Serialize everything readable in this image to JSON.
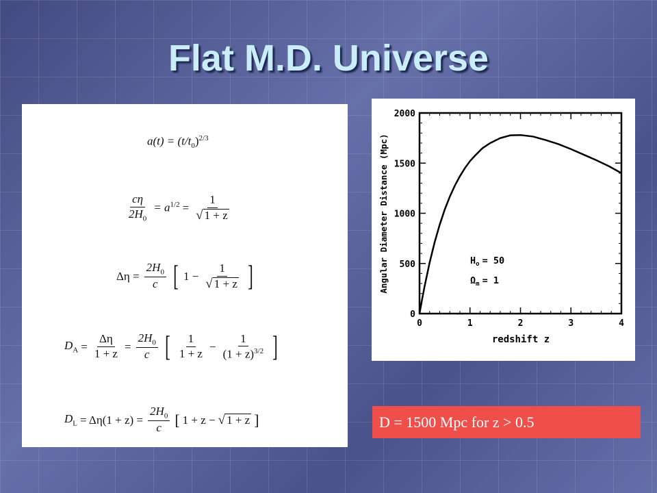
{
  "slide": {
    "title": "Flat M.D. Universe",
    "note": "D = 1500 Mpc for z > 0.5"
  },
  "equations": {
    "eq1": {
      "lhs": "a(t) = (t/t",
      "sub": "0",
      "close": ")",
      "exp": "2/3"
    },
    "eq2": {
      "num": "cη",
      "den": "2H",
      "den_sub": "0",
      "mid": "= a",
      "mid_exp": "1/2",
      "eq": "=",
      "frac_num": "1",
      "frac_den": "1 + z"
    },
    "eq3": {
      "lhs": "Δη =",
      "num": "2H",
      "num_sub": "0",
      "den": "c",
      "inner": "1 −",
      "frac_num": "1",
      "frac_den": "1 + z"
    },
    "eq4": {
      "lhs": "D",
      "lhs_sub": "A",
      "eq": "=",
      "f1_num": "Δη",
      "f1_den": "1 + z",
      "eq2": "=",
      "f2_num": "2H",
      "f2_num_sub": "0",
      "f2_den": "c",
      "a_num": "1",
      "a_den": "1 + z",
      "minus": "−",
      "b_num": "1",
      "b_den": "(1 + z)",
      "b_exp": "3/2"
    },
    "eq5": {
      "lhs": "D",
      "lhs_sub": "L",
      "mid": "= Δη(1 + z) =",
      "num": "2H",
      "num_sub": "0",
      "den": "c",
      "inner": "1 + z −",
      "rad": "1 + z"
    }
  },
  "chart_data": {
    "type": "line",
    "xlabel": "redshift z",
    "ylabel": "Angular Diameter Distance (Mpc)",
    "xlim": [
      0,
      4
    ],
    "ylim": [
      0,
      2000
    ],
    "xticks": [
      "0",
      "1",
      "2",
      "3",
      "4"
    ],
    "yticks": [
      "0",
      "500",
      "1000",
      "1500",
      "2000"
    ],
    "annotations": [
      "H",
      "o",
      "= 50",
      "Ω",
      "m",
      "= 1"
    ],
    "series": [
      {
        "x": [
          0,
          0.05,
          0.1,
          0.2,
          0.3,
          0.4,
          0.5,
          0.6,
          0.7,
          0.8,
          0.9,
          1.0,
          1.1,
          1.25,
          1.4,
          1.6,
          1.8,
          2.0,
          2.25,
          2.5,
          2.75,
          3.0,
          3.25,
          3.5,
          3.75,
          4.0
        ],
        "y": [
          0,
          140,
          271,
          508,
          712,
          887,
          1038,
          1166,
          1276,
          1370,
          1451,
          1520,
          1575,
          1650,
          1700,
          1750,
          1777,
          1780,
          1765,
          1730,
          1690,
          1640,
          1585,
          1530,
          1470,
          1400
        ]
      }
    ],
    "grid": false
  }
}
